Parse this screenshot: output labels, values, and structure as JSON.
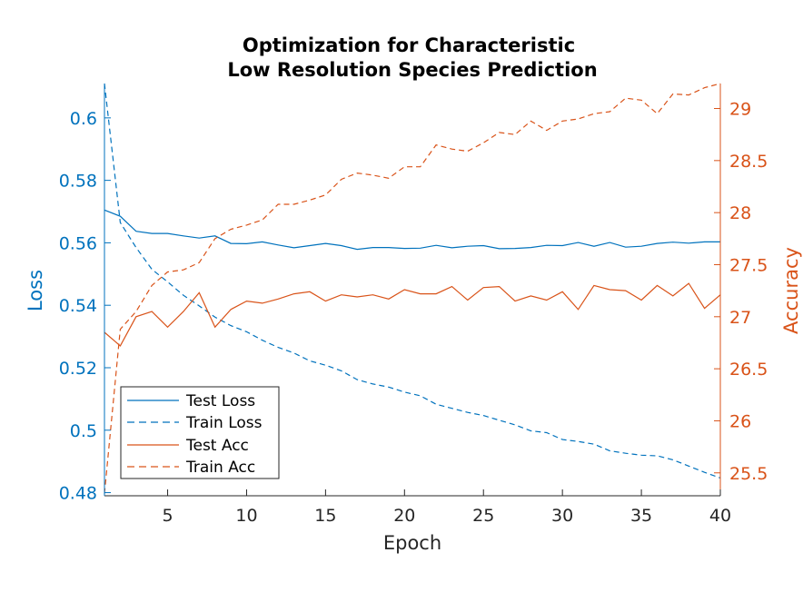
{
  "chart_data": {
    "type": "line",
    "title_lines": [
      "Optimization for Characteristic",
      "Low Resolution Species Prediction"
    ],
    "xlabel": "Epoch",
    "ylabel_left": "Loss",
    "ylabel_right": "Accuracy",
    "xlim": [
      1,
      40
    ],
    "ylim_left": [
      0.479,
      0.611
    ],
    "ylim_right": [
      25.28,
      29.24
    ],
    "x_ticks": [
      5,
      10,
      15,
      20,
      25,
      30,
      35,
      40
    ],
    "y_ticks_left": [
      0.48,
      0.5,
      0.52,
      0.54,
      0.56,
      0.58,
      0.6
    ],
    "y_ticks_right": [
      25.5,
      26,
      26.5,
      27,
      27.5,
      28,
      28.5,
      29
    ],
    "x_tick_labels": [
      "5",
      "10",
      "15",
      "20",
      "25",
      "30",
      "35",
      "40"
    ],
    "y_tick_labels_left": [
      "0.48",
      "0.5",
      "0.52",
      "0.54",
      "0.56",
      "0.58",
      "0.6"
    ],
    "y_tick_labels_right": [
      "25.5",
      "26",
      "26.5",
      "27",
      "27.5",
      "28",
      "28.5",
      "29"
    ],
    "legend_placement": "bottom-left",
    "x": [
      1,
      2,
      3,
      4,
      5,
      6,
      7,
      8,
      9,
      10,
      11,
      12,
      13,
      14,
      15,
      16,
      17,
      18,
      19,
      20,
      21,
      22,
      23,
      24,
      25,
      26,
      27,
      28,
      29,
      30,
      31,
      32,
      33,
      34,
      35,
      36,
      37,
      38,
      39,
      40
    ],
    "series": [
      {
        "name": "Test Loss",
        "axis": "left",
        "style": "solid",
        "color": "#0072BD",
        "values": [
          0.5705,
          0.5685,
          0.5637,
          0.563,
          0.563,
          0.5622,
          0.5615,
          0.5622,
          0.5598,
          0.5597,
          0.5603,
          0.5593,
          0.5584,
          0.5591,
          0.5598,
          0.5591,
          0.5579,
          0.5585,
          0.5585,
          0.5582,
          0.5583,
          0.5592,
          0.5584,
          0.5589,
          0.5591,
          0.5581,
          0.5582,
          0.5585,
          0.5592,
          0.5591,
          0.5601,
          0.5589,
          0.5601,
          0.5586,
          0.5589,
          0.5598,
          0.5602,
          0.5599,
          0.5603,
          0.5603
        ]
      },
      {
        "name": "Train Loss",
        "axis": "left",
        "style": "dashed",
        "color": "#0072BD",
        "values": [
          0.611,
          0.5665,
          0.5585,
          0.5515,
          0.5475,
          0.5432,
          0.5398,
          0.5362,
          0.5335,
          0.5315,
          0.5288,
          0.5265,
          0.5247,
          0.5222,
          0.5208,
          0.519,
          0.5162,
          0.5148,
          0.5138,
          0.5122,
          0.511,
          0.5083,
          0.507,
          0.5057,
          0.5047,
          0.5032,
          0.5017,
          0.4998,
          0.4992,
          0.497,
          0.4964,
          0.4955,
          0.4934,
          0.4926,
          0.492,
          0.4918,
          0.4905,
          0.4885,
          0.4865,
          0.4847
        ]
      },
      {
        "name": "Test Acc",
        "axis": "right",
        "style": "solid",
        "color": "#D95319",
        "values": [
          26.85,
          26.72,
          27.0,
          27.05,
          26.9,
          27.05,
          27.23,
          26.9,
          27.07,
          27.15,
          27.13,
          27.17,
          27.22,
          27.24,
          27.15,
          27.21,
          27.19,
          27.21,
          27.17,
          27.26,
          27.22,
          27.22,
          27.29,
          27.16,
          27.28,
          27.29,
          27.15,
          27.2,
          27.16,
          27.24,
          27.07,
          27.3,
          27.26,
          27.25,
          27.16,
          27.3,
          27.2,
          27.32,
          27.08,
          27.21
        ]
      },
      {
        "name": "Train Acc",
        "axis": "right",
        "style": "dashed",
        "color": "#D95319",
        "values": [
          25.3,
          26.88,
          27.05,
          27.3,
          27.43,
          27.45,
          27.52,
          27.75,
          27.84,
          27.88,
          27.93,
          28.08,
          28.08,
          28.12,
          28.17,
          28.32,
          28.38,
          28.36,
          28.33,
          28.44,
          28.44,
          28.65,
          28.61,
          28.59,
          28.67,
          28.77,
          28.75,
          28.88,
          28.79,
          28.88,
          28.9,
          28.95,
          28.97,
          29.1,
          29.08,
          28.95,
          29.14,
          29.13,
          29.2,
          29.24
        ]
      }
    ]
  }
}
